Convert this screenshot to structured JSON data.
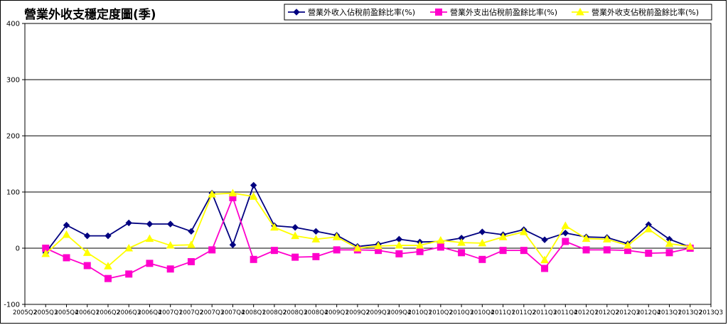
{
  "chart_data": {
    "type": "line",
    "title": "營業外收支穩定度圖(季)",
    "ylim": [
      -100,
      400
    ],
    "yticks": [
      -100,
      0,
      100,
      200,
      300,
      400
    ],
    "grid": "horizontal",
    "legend_position": "top-right",
    "x_axis_labels": [
      "2005Q2",
      "2005Q3",
      "2005Q4",
      "2006Q1",
      "2006Q2",
      "2006Q3",
      "2006Q4",
      "2007Q1",
      "2007Q2",
      "2007Q3",
      "2007Q4",
      "2008Q1",
      "2008Q2",
      "2008Q3",
      "2008Q4",
      "2009Q1",
      "2009Q2",
      "2009Q3",
      "2009Q4",
      "2010Q1",
      "2010Q2",
      "2010Q3",
      "2010Q4",
      "2011Q1",
      "2011Q2",
      "2011Q3",
      "2011Q4",
      "2012Q1",
      "2012Q2",
      "2012Q3",
      "2012Q4",
      "2013Q1",
      "2013Q2",
      "2013Q3"
    ],
    "categories": [
      "2005Q3",
      "2005Q4",
      "2006Q1",
      "2006Q2",
      "2006Q3",
      "2006Q4",
      "2007Q1",
      "2007Q2",
      "2007Q3",
      "2007Q4",
      "2008Q1",
      "2008Q2",
      "2008Q3",
      "2008Q4",
      "2009Q1",
      "2009Q2",
      "2009Q3",
      "2009Q4",
      "2010Q1",
      "2010Q2",
      "2010Q3",
      "2010Q4",
      "2011Q1",
      "2011Q2",
      "2011Q3",
      "2011Q4",
      "2012Q1",
      "2012Q2",
      "2012Q3",
      "2012Q4",
      "2013Q1",
      "2013Q2"
    ],
    "series": [
      {
        "name": "營業外收入佔稅前盈餘比率(%)",
        "color": "#000080",
        "marker": "diamond",
        "values": [
          -8,
          41,
          22,
          22,
          45,
          43,
          43,
          30,
          98,
          6,
          112,
          40,
          37,
          30,
          23,
          3,
          7,
          16,
          11,
          12,
          18,
          29,
          24,
          33,
          15,
          27,
          20,
          19,
          8,
          42,
          16,
          2
        ]
      },
      {
        "name": "營業外支出佔稅前盈餘比率(%)",
        "color": "#ff00cc",
        "marker": "square",
        "values": [
          0,
          -17,
          -31,
          -54,
          -46,
          -27,
          -37,
          -24,
          -3,
          90,
          -20,
          -4,
          -16,
          -15,
          -3,
          -3,
          -4,
          -10,
          -6,
          2,
          -8,
          -20,
          -4,
          -4,
          -36,
          12,
          -3,
          -3,
          -4,
          -9,
          -8,
          0
        ]
      },
      {
        "name": "營業外收支佔稅前盈餘比率(%)",
        "color": "#ffff00",
        "marker": "triangle",
        "values": [
          -10,
          24,
          -8,
          -32,
          0,
          17,
          5,
          6,
          96,
          98,
          92,
          37,
          22,
          16,
          20,
          0,
          4,
          5,
          5,
          14,
          10,
          9,
          20,
          29,
          -21,
          40,
          17,
          16,
          5,
          34,
          8,
          3
        ]
      }
    ]
  }
}
